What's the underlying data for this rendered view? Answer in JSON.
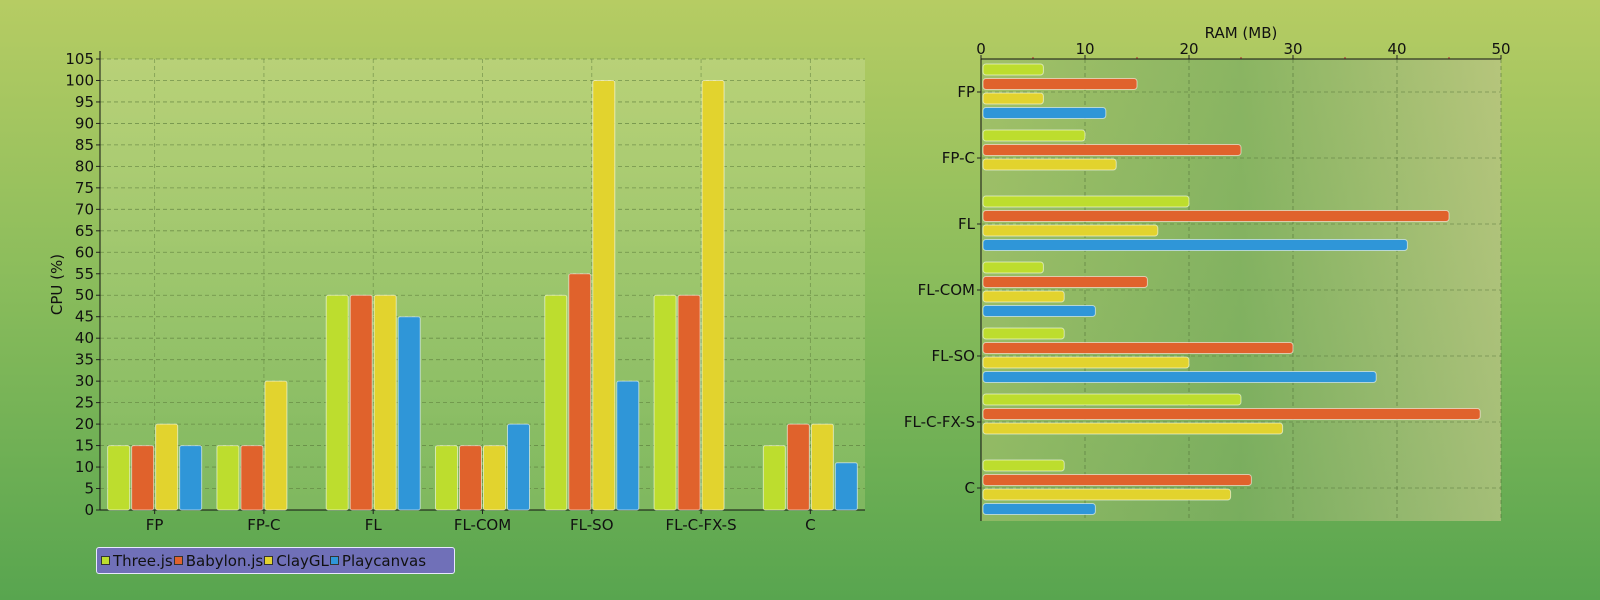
{
  "colors": {
    "three": "#bddd2e",
    "babylon": "#e0622c",
    "clay": "#e2d32e",
    "playcanvas": "#2f96d8"
  },
  "legend": [
    {
      "label": "Three.js",
      "color": "#bddd2e"
    },
    {
      "label": "Babylon.js",
      "color": "#e0622c"
    },
    {
      "label": "ClayGL",
      "color": "#e2d32e"
    },
    {
      "label": "Playcanvas",
      "color": "#2f96d8"
    }
  ],
  "chart_data": [
    {
      "type": "bar",
      "orientation": "vertical",
      "ylabel": "CPU (%)",
      "xlabel": "",
      "ylim": [
        0,
        105
      ],
      "ytick_step": 5,
      "grid": true,
      "categories": [
        "FP",
        "FP-C",
        "FL",
        "FL-COM",
        "FL-SO",
        "FL-C-FX-S",
        "C"
      ],
      "series": [
        {
          "name": "Three.js",
          "values": [
            15,
            15,
            50,
            15,
            50,
            50,
            15
          ]
        },
        {
          "name": "Babylon.js",
          "values": [
            15,
            15,
            50,
            15,
            55,
            50,
            20
          ]
        },
        {
          "name": "ClayGL",
          "values": [
            20,
            30,
            50,
            15,
            100,
            100,
            20
          ]
        },
        {
          "name": "Playcanvas",
          "values": [
            15,
            null,
            45,
            20,
            30,
            null,
            11
          ]
        }
      ],
      "legend_position": "bottom-left"
    },
    {
      "type": "bar",
      "orientation": "horizontal",
      "xlabel": "RAM (MB)",
      "ylabel": "",
      "xlim": [
        0,
        50
      ],
      "xtick_step": 10,
      "grid": true,
      "x_axis_position": "top",
      "categories": [
        "FP",
        "FP-C",
        "FL",
        "FL-COM",
        "FL-SO",
        "FL-C-FX-S",
        "C"
      ],
      "series": [
        {
          "name": "Three.js",
          "values": [
            6,
            10,
            20,
            6,
            8,
            25,
            8
          ]
        },
        {
          "name": "Babylon.js",
          "values": [
            15,
            25,
            45,
            16,
            30,
            48,
            26
          ]
        },
        {
          "name": "ClayGL",
          "values": [
            6,
            13,
            17,
            8,
            20,
            29,
            24
          ]
        },
        {
          "name": "Playcanvas",
          "values": [
            12,
            null,
            41,
            11,
            38,
            null,
            11
          ]
        }
      ]
    }
  ]
}
